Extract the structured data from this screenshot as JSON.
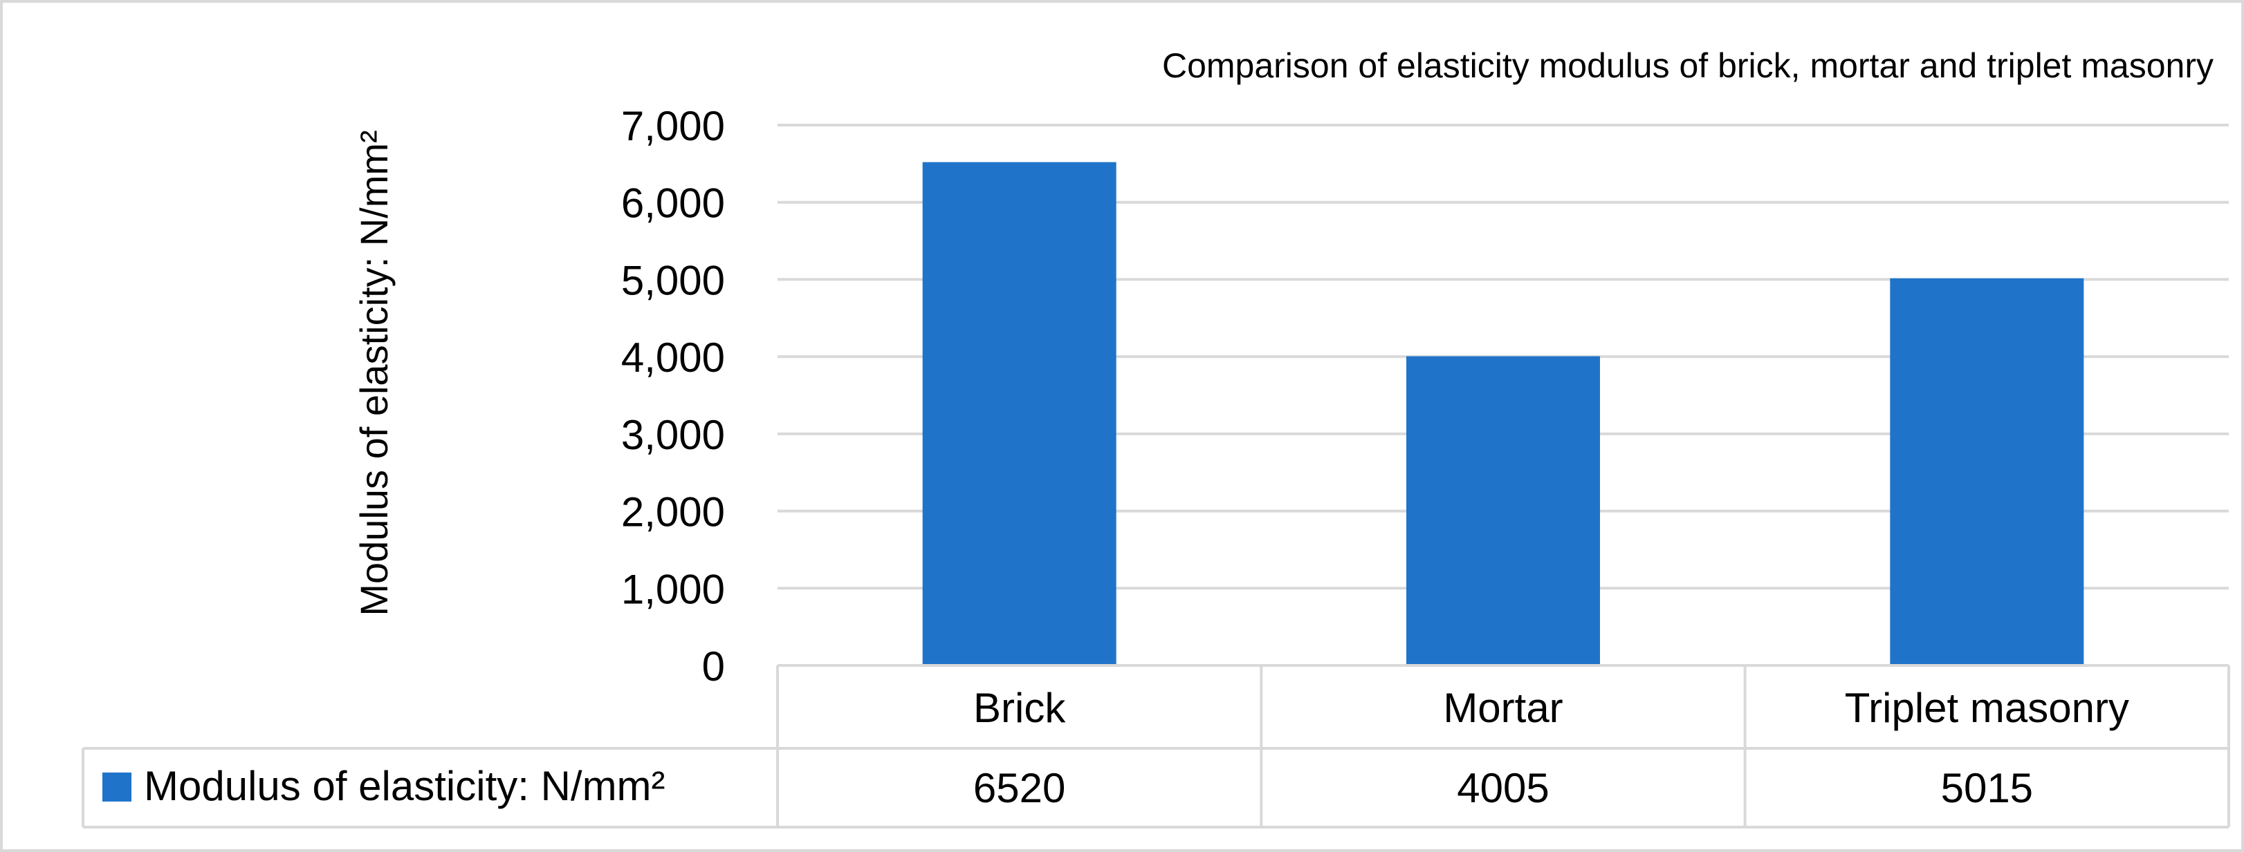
{
  "chart_data": {
    "type": "bar",
    "title": "Comparison of elasticity modulus of brick, mortar and triplet masonry",
    "ylabel": "Modulus of elasticity: N/mm²",
    "xlabel": "",
    "categories": [
      "Brick",
      "Mortar",
      "Triplet masonry"
    ],
    "series": [
      {
        "name": "Modulus of elasticity: N/mm²",
        "values": [
          6520,
          4005,
          5015
        ],
        "color": "#1f74c9"
      }
    ],
    "ylim": [
      0,
      7000
    ],
    "yticks": [
      0,
      1000,
      2000,
      3000,
      4000,
      5000,
      6000,
      7000
    ],
    "ytick_labels": [
      "0",
      "1,000",
      "2,000",
      "3,000",
      "4,000",
      "5,000",
      "6,000",
      "7,000"
    ],
    "data_table": {
      "row_label": "Modulus of elasticity: N/mm²",
      "cells": [
        "6520",
        "4005",
        "5015"
      ]
    },
    "grid": true,
    "legend": "data table"
  }
}
